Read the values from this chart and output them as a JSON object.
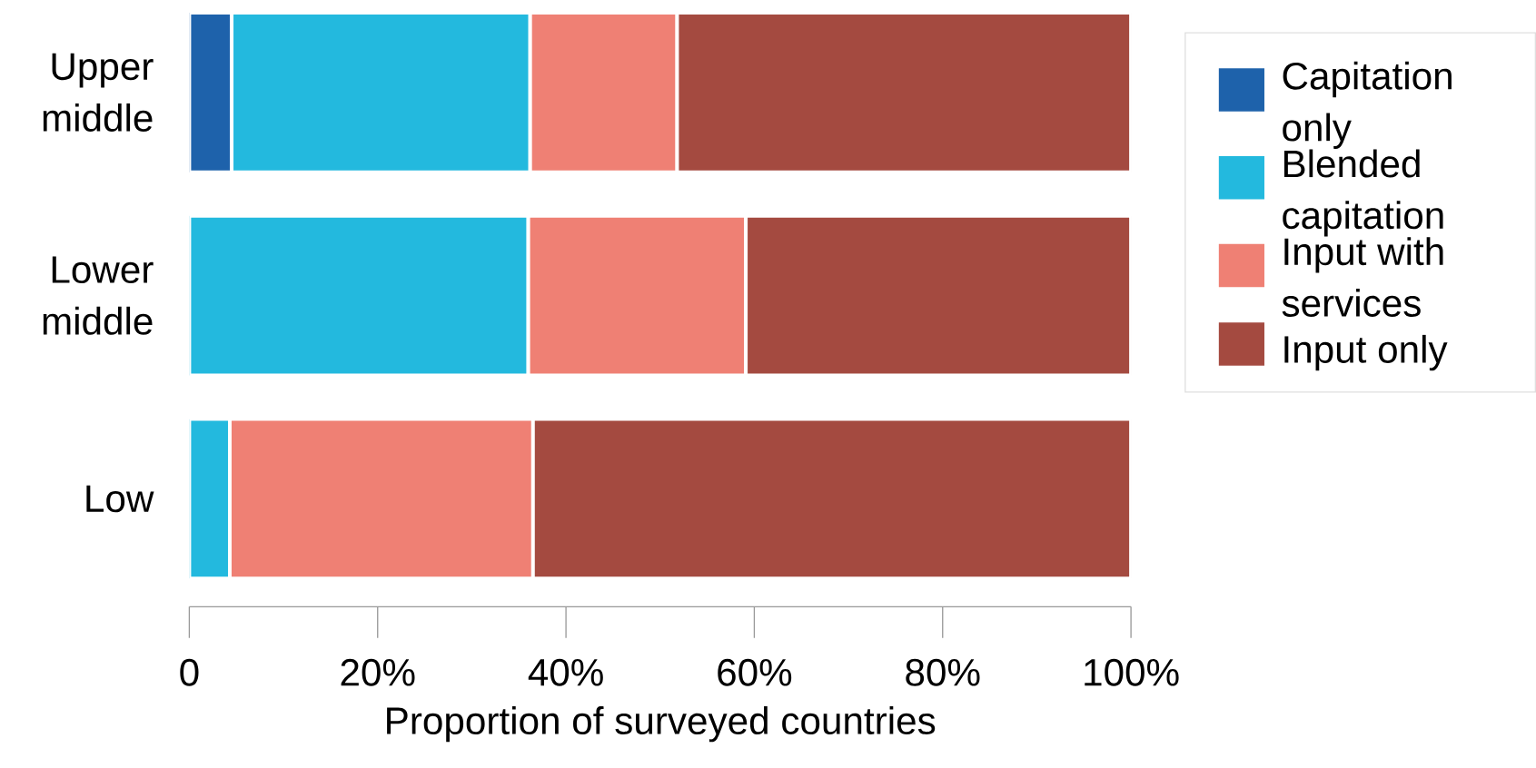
{
  "chart_data": {
    "type": "bar",
    "orientation": "horizontal",
    "stacked": true,
    "xlabel": "Proportion of surveyed countries",
    "categories": [
      "Upper middle",
      "Lower middle",
      "Low"
    ],
    "series": [
      {
        "name": "Capitation only",
        "color": "#1e62ab",
        "values": [
          4.5,
          null,
          null
        ]
      },
      {
        "name": "Blended capitation",
        "color": "#23b9de",
        "values": [
          31.7,
          36.0,
          4.3
        ]
      },
      {
        "name": "Input with services",
        "color": "#ef8074",
        "values": [
          15.6,
          23.1,
          32.2
        ]
      },
      {
        "name": "Input only",
        "color": "#a44a40",
        "values": [
          48.2,
          40.9,
          63.5
        ]
      }
    ],
    "xlim": [
      0,
      100
    ],
    "xticks": [
      0,
      {
        "value": 20,
        "label": "20%"
      },
      {
        "value": 40,
        "label": "40%"
      },
      {
        "value": 60,
        "label": "60%"
      },
      {
        "value": 80,
        "label": "80%"
      },
      {
        "value": 100,
        "label": "100%"
      }
    ],
    "legend": "right",
    "grid": false
  }
}
